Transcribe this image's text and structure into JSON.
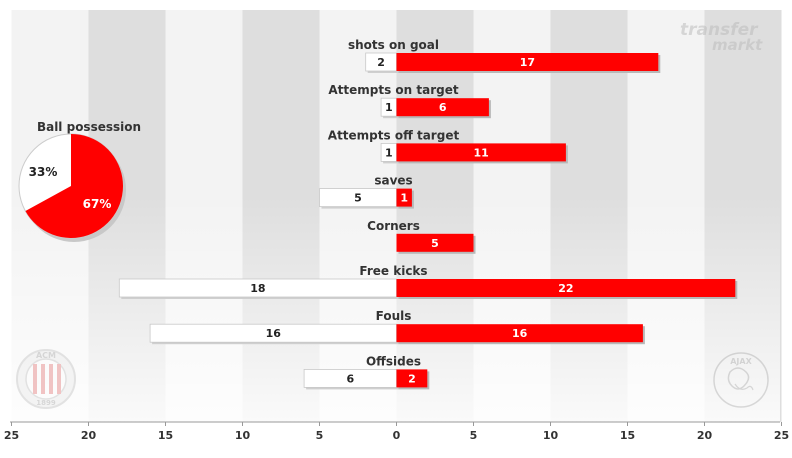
{
  "chart_data": {
    "type": "bar",
    "orientation": "horizontal-diverging",
    "categories": [
      "shots on goal",
      "Attempts on target",
      "Attempts off target",
      "saves",
      "Corners",
      "Free kicks",
      "Fouls",
      "Offsides"
    ],
    "series": [
      {
        "values": [
          2,
          1,
          1,
          5,
          0,
          18,
          16,
          6
        ],
        "color": "#ffffff"
      },
      {
        "values": [
          17,
          6,
          11,
          1,
          5,
          22,
          16,
          2
        ],
        "color": "#ff0000"
      }
    ],
    "x_ticks": [
      "25",
      "20",
      "15",
      "10",
      "5",
      "0",
      "5",
      "10",
      "15",
      "20",
      "25"
    ],
    "xlim": [
      -25,
      25
    ],
    "grid": true,
    "possession": {
      "title": "Ball possession",
      "slices": [
        {
          "label": "33%",
          "value": 33,
          "color": "#ffffff"
        },
        {
          "label": "67%",
          "value": 67,
          "color": "#ff0000"
        }
      ]
    }
  },
  "watermark": {
    "line1": "transfer",
    "line2": "markt"
  },
  "logos": {
    "left": {
      "top": "ACM",
      "bottom": "1899"
    },
    "right": {
      "text": "AJAX"
    }
  },
  "colors": {
    "red": "#ff0000",
    "white": "#ffffff",
    "band_light": "#f3f3f3",
    "band_dark": "#dedede"
  }
}
